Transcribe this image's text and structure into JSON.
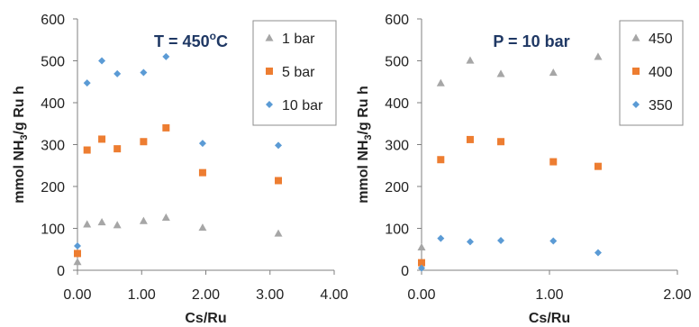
{
  "chart_data": [
    {
      "type": "scatter",
      "annotation": {
        "main": "T = 450",
        "sup": "o",
        "tail": "C"
      },
      "xlabel": "Cs/Ru",
      "ylabel": {
        "main": "mmol NH",
        "sub": "3",
        "tail": "/g Ru h"
      },
      "xlim": [
        0,
        4
      ],
      "ylim": [
        0,
        600
      ],
      "xticks": [
        "0.00",
        "1.00",
        "2.00",
        "3.00",
        "4.00"
      ],
      "yticks": [
        "0",
        "100",
        "200",
        "300",
        "400",
        "500",
        "600"
      ],
      "legend_position": "top-right",
      "series": [
        {
          "name": "1 bar",
          "color": "#a6a6a6",
          "marker": "triangle",
          "x": [
            0.0,
            0.15,
            0.38,
            0.62,
            1.03,
            1.38,
            1.95,
            3.13
          ],
          "y": [
            20,
            110,
            115,
            108,
            118,
            126,
            102,
            88
          ]
        },
        {
          "name": "5 bar",
          "color": "#ed7d31",
          "marker": "square",
          "x": [
            0.0,
            0.15,
            0.38,
            0.62,
            1.03,
            1.38,
            1.95,
            3.13
          ],
          "y": [
            40,
            287,
            313,
            290,
            307,
            340,
            233,
            214
          ]
        },
        {
          "name": "10 bar",
          "color": "#5b9bd5",
          "marker": "diamond",
          "x": [
            0.0,
            0.15,
            0.38,
            0.62,
            1.03,
            1.38,
            1.95,
            3.13
          ],
          "y": [
            58,
            447,
            500,
            469,
            472,
            510,
            303,
            298
          ]
        }
      ]
    },
    {
      "type": "scatter",
      "annotation": {
        "main": "P = 10 bar",
        "sup": "",
        "tail": ""
      },
      "xlabel": "Cs/Ru",
      "ylabel": {
        "main": "mmol NH",
        "sub": "3",
        "tail": "/g Ru h"
      },
      "xlim": [
        0,
        2
      ],
      "ylim": [
        0,
        600
      ],
      "xticks": [
        "0.00",
        "1.00",
        "2.00"
      ],
      "yticks": [
        "0",
        "100",
        "200",
        "300",
        "400",
        "500",
        "600"
      ],
      "legend_position": "top-right",
      "series": [
        {
          "name": "450",
          "color": "#a6a6a6",
          "marker": "triangle",
          "x": [
            0.0,
            0.15,
            0.38,
            0.62,
            1.03,
            1.38
          ],
          "y": [
            55,
            447,
            501,
            469,
            472,
            510
          ]
        },
        {
          "name": "400",
          "color": "#ed7d31",
          "marker": "square",
          "x": [
            0.0,
            0.15,
            0.38,
            0.62,
            1.03,
            1.38
          ],
          "y": [
            18,
            264,
            312,
            307,
            259,
            248
          ]
        },
        {
          "name": "350",
          "color": "#5b9bd5",
          "marker": "diamond",
          "x": [
            0.0,
            0.15,
            0.38,
            0.62,
            1.03,
            1.38
          ],
          "y": [
            5,
            76,
            68,
            71,
            70,
            42
          ]
        }
      ]
    }
  ]
}
